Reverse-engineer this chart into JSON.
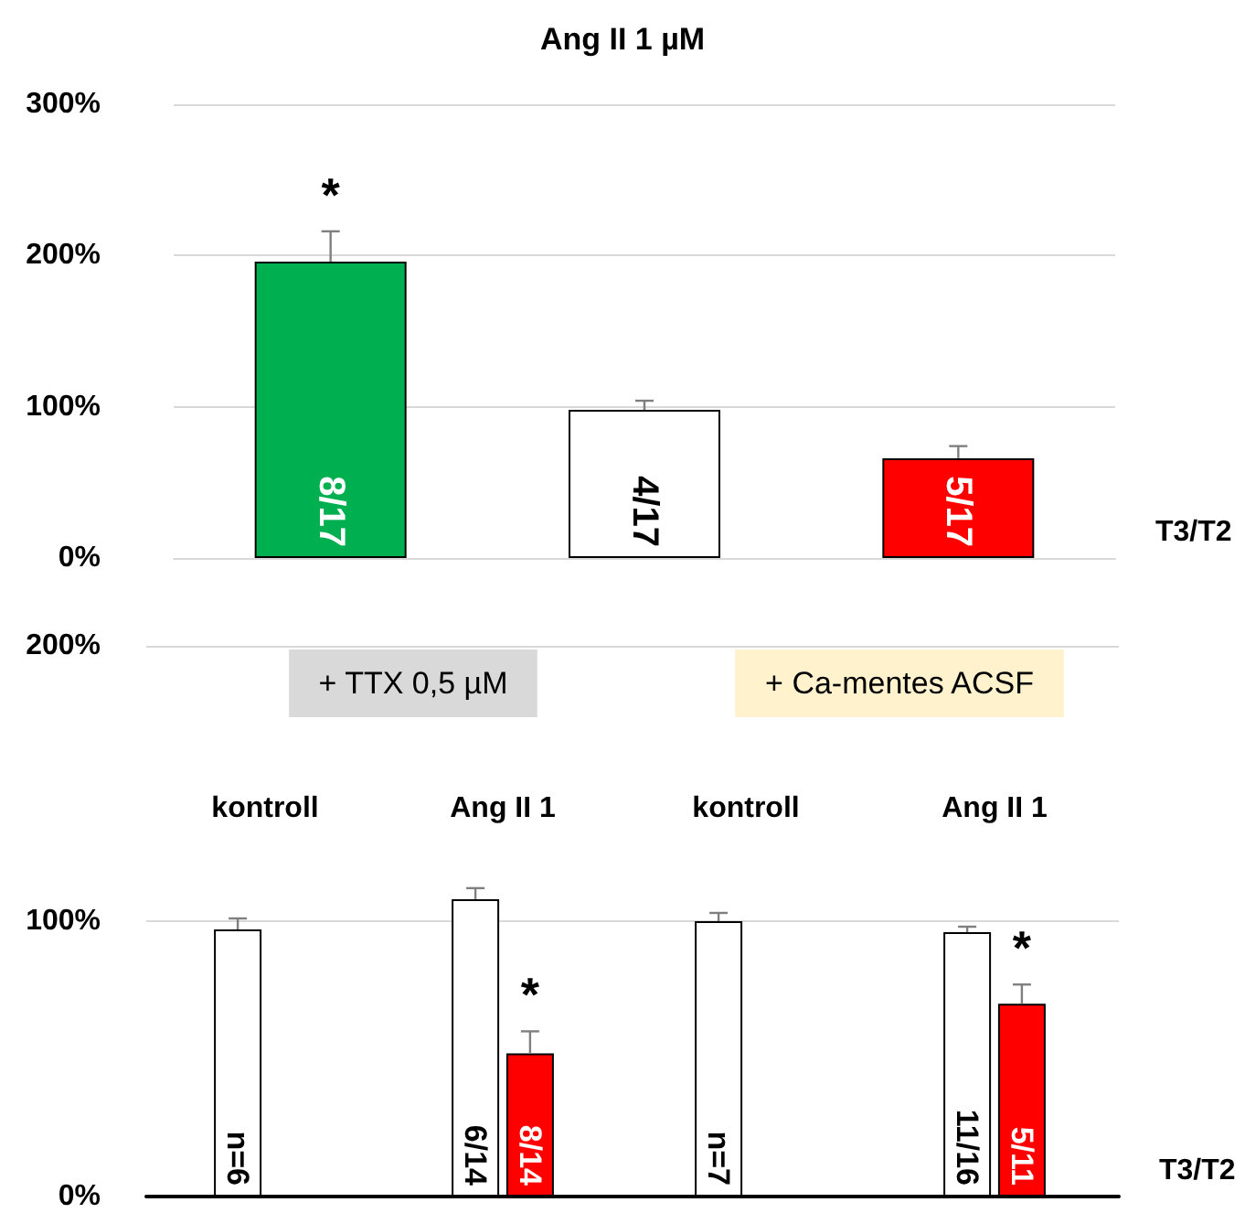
{
  "chart_data": [
    {
      "type": "bar",
      "title": "Ang II 1 µM",
      "xlabel": "T3/T2",
      "categories": [
        null,
        null,
        null
      ],
      "series": [
        {
          "colors": [
            "#00b050",
            "#ffffff",
            "#ff0000"
          ],
          "values": [
            196,
            98,
            66
          ],
          "errors": [
            [
              196,
              216
            ],
            [
              98,
              104
            ],
            [
              66,
              74
            ]
          ]
        }
      ],
      "ylim": [
        0,
        300
      ],
      "yticks": [
        {
          "value": 0,
          "label": "0%"
        },
        {
          "value": 100,
          "label": "100%"
        },
        {
          "value": 200,
          "label": "200%"
        },
        {
          "value": 300,
          "label": "300%"
        }
      ],
      "grid": true,
      "annotations": [
        "8/17",
        "4/17",
        "5/17",
        "*"
      ]
    },
    {
      "type": "bar",
      "title": "+ TTX 0,5 µM",
      "categories": [
        "kontroll",
        "Ang II 1"
      ],
      "series": [
        {
          "color": "#ffffff",
          "values": [
            97,
            108
          ],
          "errors": [
            [
              97,
              101
            ],
            [
              108,
              112
            ]
          ]
        },
        {
          "color": "#ff0000",
          "values": [
            null,
            52
          ],
          "errors": [
            null,
            [
              52,
              60
            ]
          ]
        }
      ],
      "ylim": [
        0,
        200
      ],
      "yticks": [
        {
          "value": 0,
          "label": "0%"
        },
        {
          "value": 100,
          "label": "100%"
        },
        {
          "value": 200,
          "label": "200%"
        }
      ],
      "grid": true,
      "annotations": [
        "n=6",
        "6/14",
        "8/14",
        "*"
      ]
    },
    {
      "type": "bar",
      "title": "+ Ca-mentes ACSF",
      "xlabel": "T3/T2",
      "categories": [
        "kontroll",
        "Ang II 1"
      ],
      "series": [
        {
          "color": "#ffffff",
          "values": [
            100,
            96
          ],
          "errors": [
            [
              100,
              103
            ],
            [
              96,
              98
            ]
          ]
        },
        {
          "color": "#ff0000",
          "values": [
            null,
            70
          ],
          "errors": [
            null,
            [
              70,
              77
            ]
          ]
        }
      ],
      "ylim": [
        0,
        200
      ],
      "yticks": [
        0,
        100,
        200
      ],
      "grid": true,
      "tick_labels": "x",
      "annotations": [
        "n=7",
        "11/16",
        "5/11",
        "*"
      ]
    }
  ]
}
